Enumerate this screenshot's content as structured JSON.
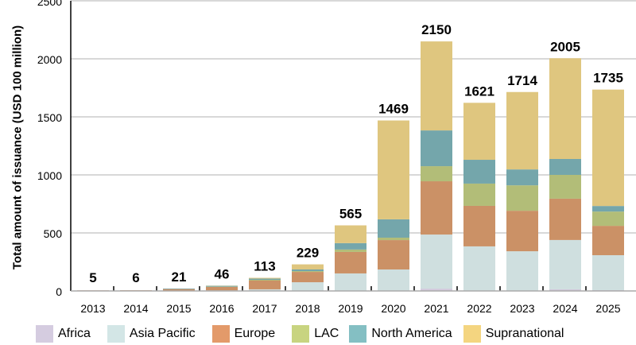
{
  "chart_data": {
    "type": "bar",
    "stacked": true,
    "title": "",
    "xlabel": "",
    "ylabel": "Total amount of issuance (USD 100 million)",
    "ylim": [
      0,
      2500
    ],
    "yticks": [
      0,
      500,
      1000,
      1500,
      2000,
      2500
    ],
    "grid": true,
    "legend_position": "bottom",
    "categories": [
      "2013",
      "2014",
      "2015",
      "2016",
      "2017",
      "2018",
      "2019",
      "2020",
      "2021",
      "2022",
      "2023",
      "2024",
      "2025"
    ],
    "totals": [
      5,
      6,
      21,
      46,
      113,
      229,
      565,
      1469,
      2150,
      1621,
      1714,
      2005,
      1735
    ],
    "series": [
      {
        "name": "Africa",
        "color": "#d2c9dc",
        "legend_color": "#d5cce0",
        "values": [
          0,
          0,
          0,
          0,
          0,
          0,
          0,
          0,
          20,
          0,
          0,
          14,
          7
        ]
      },
      {
        "name": "Asia Pacific",
        "color": "#cfdfdf",
        "legend_color": "#d3e6e6",
        "values": [
          0,
          0,
          2,
          5,
          14,
          75,
          151,
          185,
          466,
          384,
          342,
          425,
          301
        ]
      },
      {
        "name": "Europe",
        "color": "#cb9166",
        "legend_color": "#e39a6a",
        "values": [
          5,
          6,
          14,
          30,
          75,
          89,
          185,
          253,
          459,
          349,
          349,
          356,
          253
        ]
      },
      {
        "name": "LAC",
        "color": "#b2bd78",
        "legend_color": "#c8d480",
        "values": [
          0,
          0,
          0,
          2,
          7,
          7,
          21,
          21,
          130,
          192,
          219,
          205,
          123
        ]
      },
      {
        "name": "North America",
        "color": "#74a6ab",
        "legend_color": "#84bfc3",
        "values": [
          0,
          0,
          5,
          7,
          10,
          14,
          55,
          158,
          308,
          205,
          137,
          137,
          48
        ]
      },
      {
        "name": "Supranational",
        "color": "#dfc67f",
        "legend_color": "#f4d580",
        "values": [
          0,
          0,
          0,
          2,
          7,
          44,
          153,
          852,
          767,
          491,
          667,
          868,
          1003
        ]
      }
    ]
  }
}
